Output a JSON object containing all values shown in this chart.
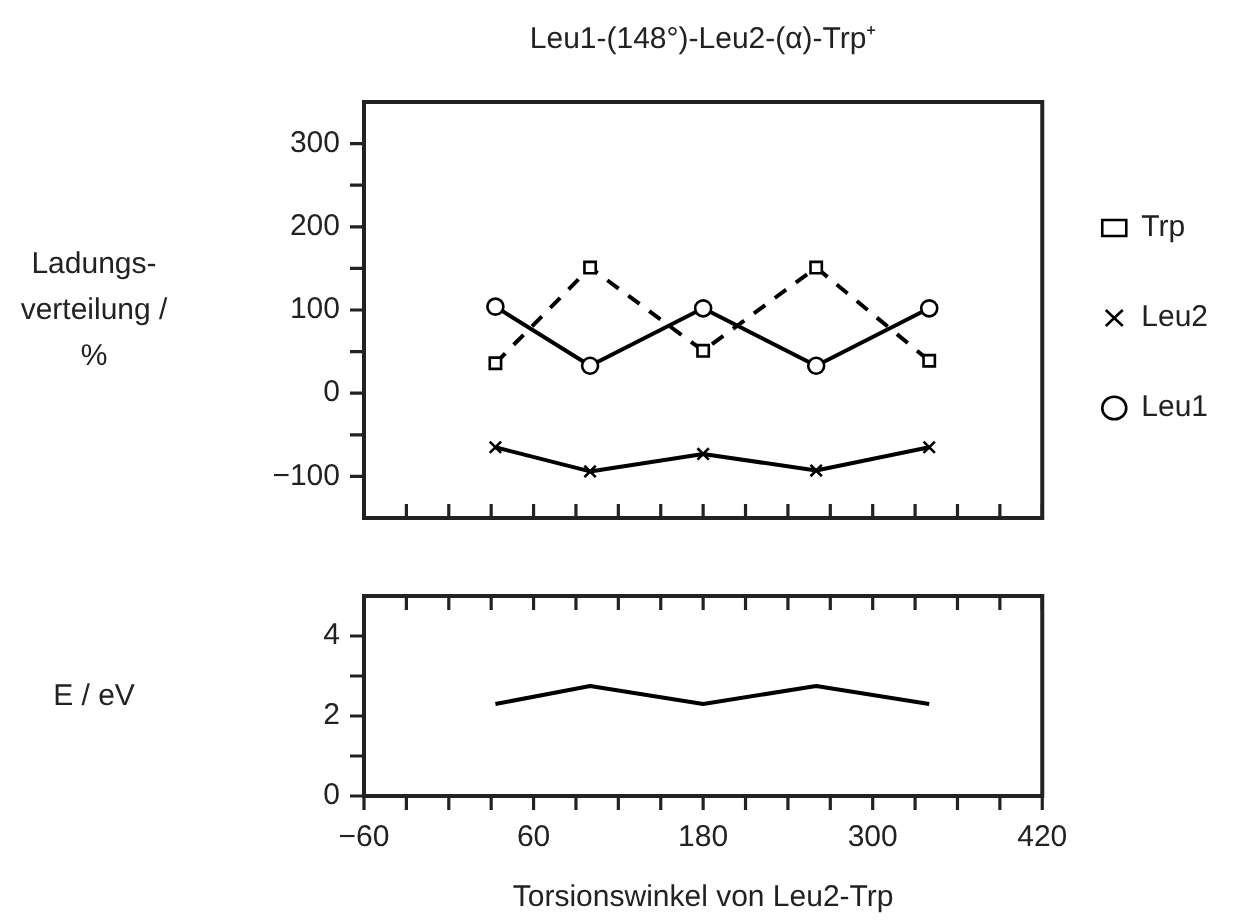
{
  "chart_data": [
    {
      "type": "line",
      "title": "Leu1-(148°)-Leu2-(α)-Trp⁺",
      "ylabel": "Ladungs-verteilung / %",
      "x": [
        33,
        100,
        180,
        260,
        340
      ],
      "series": [
        {
          "name": "Trp",
          "color": "#000000",
          "values": [
            36,
            151,
            51,
            151,
            39
          ],
          "marker": "square",
          "line_style": "dashed"
        },
        {
          "name": "Leu2",
          "color": "#000000",
          "values": [
            -65,
            -94,
            -73,
            -93,
            -65
          ],
          "marker": "cross",
          "line_style": "solid"
        },
        {
          "name": "Leu1",
          "color": "#000000",
          "values": [
            104,
            33,
            102,
            33,
            102
          ],
          "marker": "circle",
          "line_style": "solid"
        }
      ],
      "xlim": [
        -60,
        420
      ],
      "xticks": [
        -60,
        {
          "value": -30,
          "label": null
        },
        {
          "value": 0,
          "label": null
        },
        {
          "value": 30,
          "label": null
        },
        60,
        {
          "value": 90,
          "label": null
        },
        {
          "value": 120,
          "label": null
        },
        {
          "value": 150,
          "label": null
        },
        180,
        {
          "value": 210,
          "label": null
        },
        {
          "value": 240,
          "label": null
        },
        {
          "value": 270,
          "label": null
        },
        300,
        {
          "value": 330,
          "label": null
        },
        {
          "value": 360,
          "label": null
        },
        {
          "value": 390,
          "label": null
        },
        420
      ],
      "ylim": [
        -150,
        350
      ],
      "yticks": [
        -100,
        {
          "value": -50,
          "label": null
        },
        0,
        {
          "value": 50,
          "label": null
        },
        100,
        {
          "value": 150,
          "label": null
        },
        200,
        {
          "value": 250,
          "label": null
        },
        300
      ],
      "tick_labels": "y",
      "legend": "right"
    },
    {
      "type": "line",
      "xlabel": "Torsionswinkel von Leu2-Trp",
      "ylabel": "E / eV",
      "x": [
        33,
        100,
        180,
        260,
        340
      ],
      "series": [
        {
          "color": "#000000",
          "values": [
            2.3,
            2.75,
            2.3,
            2.75,
            2.3
          ],
          "marker": "none",
          "line_style": "solid"
        }
      ],
      "xlim": [
        -60,
        420
      ],
      "xticks": [
        -60,
        {
          "value": -30,
          "label": null
        },
        {
          "value": 0,
          "label": null
        },
        {
          "value": 30,
          "label": null
        },
        60,
        {
          "value": 90,
          "label": null
        },
        {
          "value": 120,
          "label": null
        },
        {
          "value": 150,
          "label": null
        },
        180,
        {
          "value": 210,
          "label": null
        },
        {
          "value": 240,
          "label": null
        },
        {
          "value": 270,
          "label": null
        },
        300,
        {
          "value": 330,
          "label": null
        },
        {
          "value": 360,
          "label": null
        },
        {
          "value": 390,
          "label": null
        },
        420
      ],
      "ylim": [
        0,
        5
      ],
      "yticks": [
        0,
        {
          "value": 1,
          "label": null
        },
        2,
        {
          "value": 3,
          "label": null
        },
        4
      ]
    }
  ]
}
